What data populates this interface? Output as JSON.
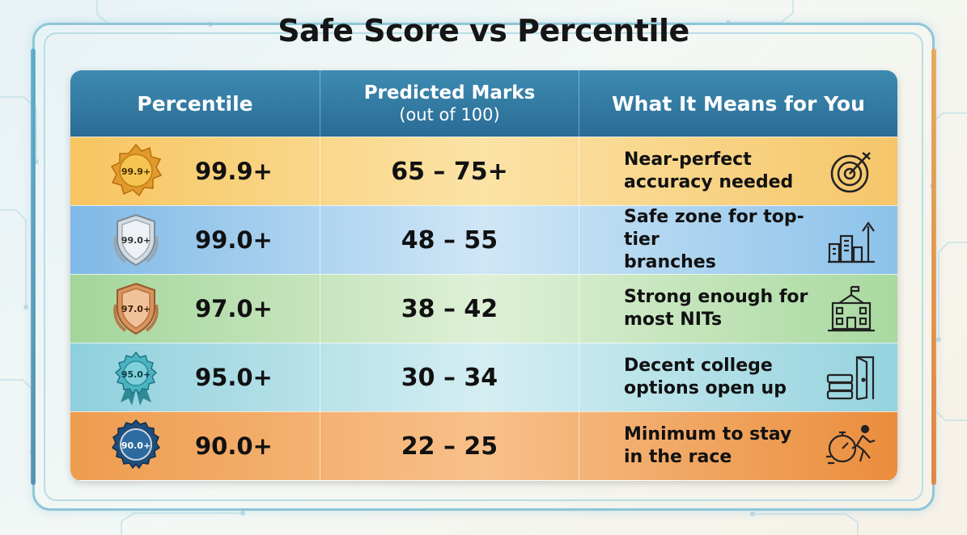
{
  "title": "Safe Score vs Percentile",
  "header": {
    "col1": "Percentile",
    "col2_line1": "Predicted Marks",
    "col2_line2": "(out of 100)",
    "col3": "What It Means for You"
  },
  "rows": [
    {
      "badge": "99.9+",
      "percentile": "99.9+",
      "marks": "65 – 75+",
      "means_line1": "Near-perfect",
      "means_line2": "accuracy needed",
      "icon": "target-icon",
      "color": "#f7c560"
    },
    {
      "badge": "99.0+",
      "percentile": "99.0+",
      "marks": "48 – 55",
      "means_line1": "Safe zone for top-tier",
      "means_line2": "branches",
      "icon": "growth-buildings-icon",
      "color": "#7fb9e6"
    },
    {
      "badge": "97.0+",
      "percentile": "97.0+",
      "marks": "38 – 42",
      "means_line1": "Strong enough for",
      "means_line2": "most NITs",
      "icon": "school-building-icon",
      "color": "#a3d59a"
    },
    {
      "badge": "95.0+",
      "percentile": "95.0+",
      "marks": "30 – 34",
      "means_line1": "Decent college",
      "means_line2": "options open up",
      "icon": "books-door-icon",
      "color": "#8fd0dd"
    },
    {
      "badge": "90.0+",
      "percentile": "90.0+",
      "marks": "22 – 25",
      "means_line1": "Minimum to stay",
      "means_line2": "in the race",
      "icon": "stopwatch-runner-icon",
      "color": "#ee9c4e"
    }
  ]
}
